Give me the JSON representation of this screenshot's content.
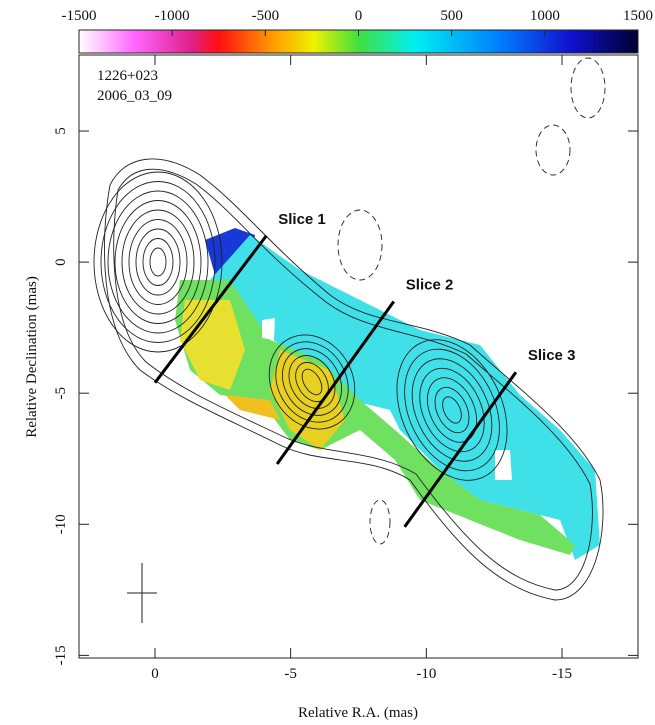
{
  "chart_data": {
    "type": "map",
    "source": "1226+023",
    "epoch": "2006_03_09",
    "x_label": "Relative R.A. (mas)",
    "y_label": "Relative Declination (mas)",
    "xlim": [
      2.8,
      -17.8
    ],
    "ylim": [
      -15.1,
      7.9
    ],
    "xticks": [
      0,
      -5,
      -10,
      -15
    ],
    "yticks": [
      -15,
      -10,
      -5,
      0,
      5
    ],
    "clim": [
      -1500,
      1500
    ],
    "cticks": [
      -1500,
      -1000,
      -500,
      0,
      500,
      1000,
      1500
    ],
    "slices": [
      {
        "label": "Slice 1",
        "x": [
          0,
          -4.1
        ],
        "y": [
          -4.6,
          1.0
        ]
      },
      {
        "label": "Slice 2",
        "x": [
          -4.5,
          -8.8
        ],
        "y": [
          -7.7,
          -1.5
        ]
      },
      {
        "label": "Slice 3",
        "x": [
          -9.2,
          -13.3
        ],
        "y": [
          -10.1,
          -4.2
        ]
      }
    ]
  }
}
